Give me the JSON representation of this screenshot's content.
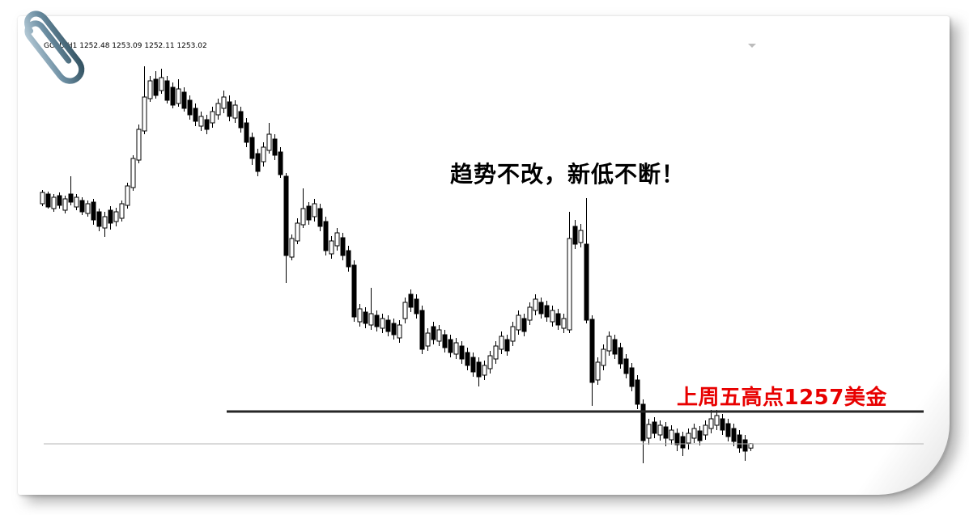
{
  "page": {
    "ticker_line": "GOLD,H1 1252.48 1253.09 1252.11 1253.02",
    "headline": "趋势不改，新低不断！",
    "support_label": "上周五高点1257美金"
  },
  "colors": {
    "annotation_red": "#e80000",
    "trendline_black": "#262626",
    "bid_line_gray": "#b5b5b5",
    "candle_outline": "#000000",
    "candle_bull_fill": "#ffffff",
    "candle_bear_fill": "#000000",
    "paperclip_steel_light": "#b9cdd9",
    "paperclip_steel_mid": "#6d8fa3",
    "paperclip_steel_dark": "#31505f"
  },
  "chart_data": {
    "type": "candlestick",
    "symbol": "GOLD",
    "timeframe": "H1",
    "title": "趋势不改，新低不断！",
    "last_bar": {
      "open": 1252.48,
      "high": 1253.09,
      "low": 1252.11,
      "close": 1253.02
    },
    "horizontal_line_price": 1257,
    "horizontal_line_label": "上周五高点1257美金",
    "bid_line_price": 1253.0,
    "ylim": [
      1250,
      1301
    ],
    "grid": false,
    "legend": false,
    "candles": [
      [
        1282.7,
        1284.4,
        1282.4,
        1284.1
      ],
      [
        1283.9,
        1284.2,
        1282.1,
        1282.3
      ],
      [
        1282.1,
        1283.9,
        1281.7,
        1283.5
      ],
      [
        1283.7,
        1284.1,
        1282.1,
        1282.5
      ],
      [
        1281.9,
        1283.7,
        1281.5,
        1283.3
      ],
      [
        1283.9,
        1286.1,
        1282.5,
        1282.9
      ],
      [
        1282.3,
        1283.9,
        1281.9,
        1283.5
      ],
      [
        1283.1,
        1283.5,
        1281.3,
        1281.7
      ],
      [
        1281.5,
        1283.1,
        1281.1,
        1282.7
      ],
      [
        1282.9,
        1283.3,
        1280.1,
        1280.7
      ],
      [
        1281.7,
        1282.1,
        1279.3,
        1279.9
      ],
      [
        1279.7,
        1281.7,
        1278.6,
        1281.1
      ],
      [
        1281.9,
        1282.4,
        1279.5,
        1280.3
      ],
      [
        1280.5,
        1282.2,
        1279.9,
        1281.7
      ],
      [
        1280.9,
        1283.1,
        1280.5,
        1282.7
      ],
      [
        1282.5,
        1285.3,
        1282.1,
        1284.9
      ],
      [
        1284.7,
        1288.7,
        1284.3,
        1288.3
      ],
      [
        1288.1,
        1292.5,
        1287.7,
        1291.9
      ],
      [
        1291.7,
        1299.7,
        1291.3,
        1295.9
      ],
      [
        1295.7,
        1298.5,
        1295.3,
        1297.9
      ],
      [
        1298.1,
        1299.1,
        1295.7,
        1296.1
      ],
      [
        1296.7,
        1299.4,
        1296.3,
        1298.3
      ],
      [
        1297.9,
        1298.5,
        1295.1,
        1295.5
      ],
      [
        1297.1,
        1297.7,
        1294.5,
        1294.9
      ],
      [
        1295.1,
        1298.1,
        1294.7,
        1296.9
      ],
      [
        1296.5,
        1297.1,
        1294.1,
        1294.5
      ],
      [
        1295.5,
        1296.1,
        1293.1,
        1293.7
      ],
      [
        1294.5,
        1295.1,
        1292.3,
        1292.9
      ],
      [
        1292.3,
        1294.1,
        1291.7,
        1293.5
      ],
      [
        1293.1,
        1293.7,
        1291.3,
        1291.9
      ],
      [
        1292.7,
        1294.7,
        1292.1,
        1294.1
      ],
      [
        1293.7,
        1295.7,
        1293.1,
        1295.1
      ],
      [
        1294.5,
        1296.7,
        1293.9,
        1295.9
      ],
      [
        1295.3,
        1296.1,
        1292.9,
        1293.5
      ],
      [
        1293.3,
        1295.5,
        1292.7,
        1294.9
      ],
      [
        1294.1,
        1294.7,
        1291.5,
        1292.1
      ],
      [
        1292.7,
        1293.3,
        1289.7,
        1290.3
      ],
      [
        1290.9,
        1291.5,
        1287.5,
        1288.3
      ],
      [
        1288.9,
        1289.5,
        1286.1,
        1286.7
      ],
      [
        1287.9,
        1290.3,
        1287.3,
        1289.7
      ],
      [
        1289.3,
        1292.7,
        1288.9,
        1291.3
      ],
      [
        1290.7,
        1291.3,
        1288.1,
        1288.7
      ],
      [
        1289.1,
        1289.7,
        1285.9,
        1286.3
      ],
      [
        1286.1,
        1286.5,
        1272.9,
        1276.3
      ],
      [
        1276.1,
        1278.9,
        1275.7,
        1278.4
      ],
      [
        1278.1,
        1280.9,
        1277.7,
        1280.3
      ],
      [
        1280.1,
        1284.6,
        1279.7,
        1282.1
      ],
      [
        1282.4,
        1282.9,
        1280.1,
        1280.7
      ],
      [
        1281.1,
        1283.3,
        1280.5,
        1282.7
      ],
      [
        1282.1,
        1282.7,
        1279.3,
        1279.9
      ],
      [
        1280.5,
        1281.1,
        1276.3,
        1276.9
      ],
      [
        1276.5,
        1278.7,
        1275.9,
        1278.1
      ],
      [
        1277.5,
        1279.7,
        1276.9,
        1279.1
      ],
      [
        1278.5,
        1279.1,
        1275.7,
        1276.3
      ],
      [
        1276.9,
        1277.5,
        1274.3,
        1274.9
      ],
      [
        1275.1,
        1275.7,
        1268.1,
        1268.7
      ],
      [
        1268.1,
        1270.3,
        1267.5,
        1269.7
      ],
      [
        1269.3,
        1269.9,
        1267.3,
        1267.9
      ],
      [
        1267.7,
        1272.3,
        1267.1,
        1269.1
      ],
      [
        1268.9,
        1269.5,
        1266.9,
        1267.5
      ],
      [
        1267.3,
        1269.1,
        1266.7,
        1268.5
      ],
      [
        1268.3,
        1268.9,
        1266.3,
        1266.9
      ],
      [
        1267.9,
        1268.5,
        1265.9,
        1266.5
      ],
      [
        1266.1,
        1268.3,
        1265.5,
        1267.7
      ],
      [
        1268.5,
        1271.1,
        1267.9,
        1270.5
      ],
      [
        1271.5,
        1272.1,
        1269.3,
        1269.9
      ],
      [
        1270.9,
        1271.5,
        1268.5,
        1269.1
      ],
      [
        1269.5,
        1270.1,
        1264.1,
        1264.7
      ],
      [
        1265.1,
        1267.3,
        1264.5,
        1266.7
      ],
      [
        1267.5,
        1268.1,
        1265.3,
        1265.9
      ],
      [
        1265.7,
        1267.7,
        1265.1,
        1267.1
      ],
      [
        1266.5,
        1267.1,
        1264.3,
        1264.9
      ],
      [
        1265.9,
        1266.5,
        1263.7,
        1264.3
      ],
      [
        1264.1,
        1266.1,
        1263.5,
        1265.5
      ],
      [
        1265.1,
        1265.7,
        1262.9,
        1263.5
      ],
      [
        1264.3,
        1264.9,
        1262.1,
        1262.7
      ],
      [
        1263.7,
        1264.3,
        1261.3,
        1261.9
      ],
      [
        1263.1,
        1263.7,
        1260.1,
        1261.3
      ],
      [
        1261.5,
        1263.3,
        1260.9,
        1262.7
      ],
      [
        1262.3,
        1264.5,
        1261.7,
        1263.9
      ],
      [
        1263.5,
        1265.7,
        1262.9,
        1265.1
      ],
      [
        1264.7,
        1266.9,
        1264.1,
        1266.3
      ],
      [
        1265.9,
        1266.5,
        1263.9,
        1264.5
      ],
      [
        1265.7,
        1268.1,
        1265.1,
        1267.5
      ],
      [
        1267.1,
        1269.5,
        1266.5,
        1268.9
      ],
      [
        1268.5,
        1269.1,
        1266.3,
        1266.9
      ],
      [
        1268.3,
        1270.5,
        1267.7,
        1269.9
      ],
      [
        1269.5,
        1271.5,
        1268.9,
        1270.9
      ],
      [
        1270.5,
        1271.1,
        1268.5,
        1269.1
      ],
      [
        1270.1,
        1270.7,
        1268.1,
        1268.7
      ],
      [
        1268.1,
        1270.1,
        1267.5,
        1269.5
      ],
      [
        1269.1,
        1269.7,
        1267.1,
        1267.7
      ],
      [
        1267.3,
        1269.1,
        1266.7,
        1268.5
      ],
      [
        1267.1,
        1281.7,
        1266.7,
        1278.4
      ],
      [
        1279.9,
        1280.7,
        1277.1,
        1277.7
      ],
      [
        1277.9,
        1280.2,
        1277.3,
        1279.4
      ],
      [
        1277.7,
        1283.4,
        1267.9,
        1268.3
      ],
      [
        1268.4,
        1268.9,
        1257.7,
        1260.6
      ],
      [
        1260.9,
        1263.7,
        1260.3,
        1263.1
      ],
      [
        1262.7,
        1265.3,
        1262.1,
        1264.7
      ],
      [
        1264.5,
        1266.9,
        1263.9,
        1266.3
      ],
      [
        1265.9,
        1266.5,
        1263.5,
        1264.1
      ],
      [
        1264.9,
        1265.5,
        1262.3,
        1262.9
      ],
      [
        1263.5,
        1264.1,
        1261.1,
        1261.7
      ],
      [
        1262.4,
        1263.0,
        1259.5,
        1260.1
      ],
      [
        1260.9,
        1261.5,
        1257.3,
        1257.9
      ],
      [
        1257.9,
        1258.5,
        1250.6,
        1253.4
      ],
      [
        1253.7,
        1256.1,
        1252.9,
        1255.4
      ],
      [
        1255.7,
        1256.3,
        1253.7,
        1254.3
      ],
      [
        1254.1,
        1255.9,
        1253.4,
        1255.3
      ],
      [
        1255.1,
        1255.7,
        1252.7,
        1253.7
      ],
      [
        1253.5,
        1255.3,
        1252.9,
        1254.7
      ],
      [
        1254.3,
        1254.9,
        1252.1,
        1252.9
      ],
      [
        1253.9,
        1254.5,
        1251.5,
        1252.5
      ],
      [
        1253.1,
        1254.9,
        1252.3,
        1254.3
      ],
      [
        1253.7,
        1255.5,
        1253.1,
        1254.9
      ],
      [
        1254.6,
        1255.2,
        1252.8,
        1253.4
      ],
      [
        1254.1,
        1255.9,
        1253.5,
        1255.3
      ],
      [
        1254.9,
        1257.2,
        1254.3,
        1256.1
      ],
      [
        1255.3,
        1257.2,
        1254.7,
        1256.5
      ],
      [
        1256.1,
        1256.7,
        1254.1,
        1254.7
      ],
      [
        1255.5,
        1256.1,
        1253.3,
        1253.9
      ],
      [
        1254.9,
        1255.5,
        1252.7,
        1253.3
      ],
      [
        1254.1,
        1254.7,
        1251.9,
        1252.5
      ],
      [
        1253.5,
        1254.1,
        1250.9,
        1252.1
      ],
      [
        1252.48,
        1253.09,
        1252.11,
        1253.02
      ]
    ]
  }
}
